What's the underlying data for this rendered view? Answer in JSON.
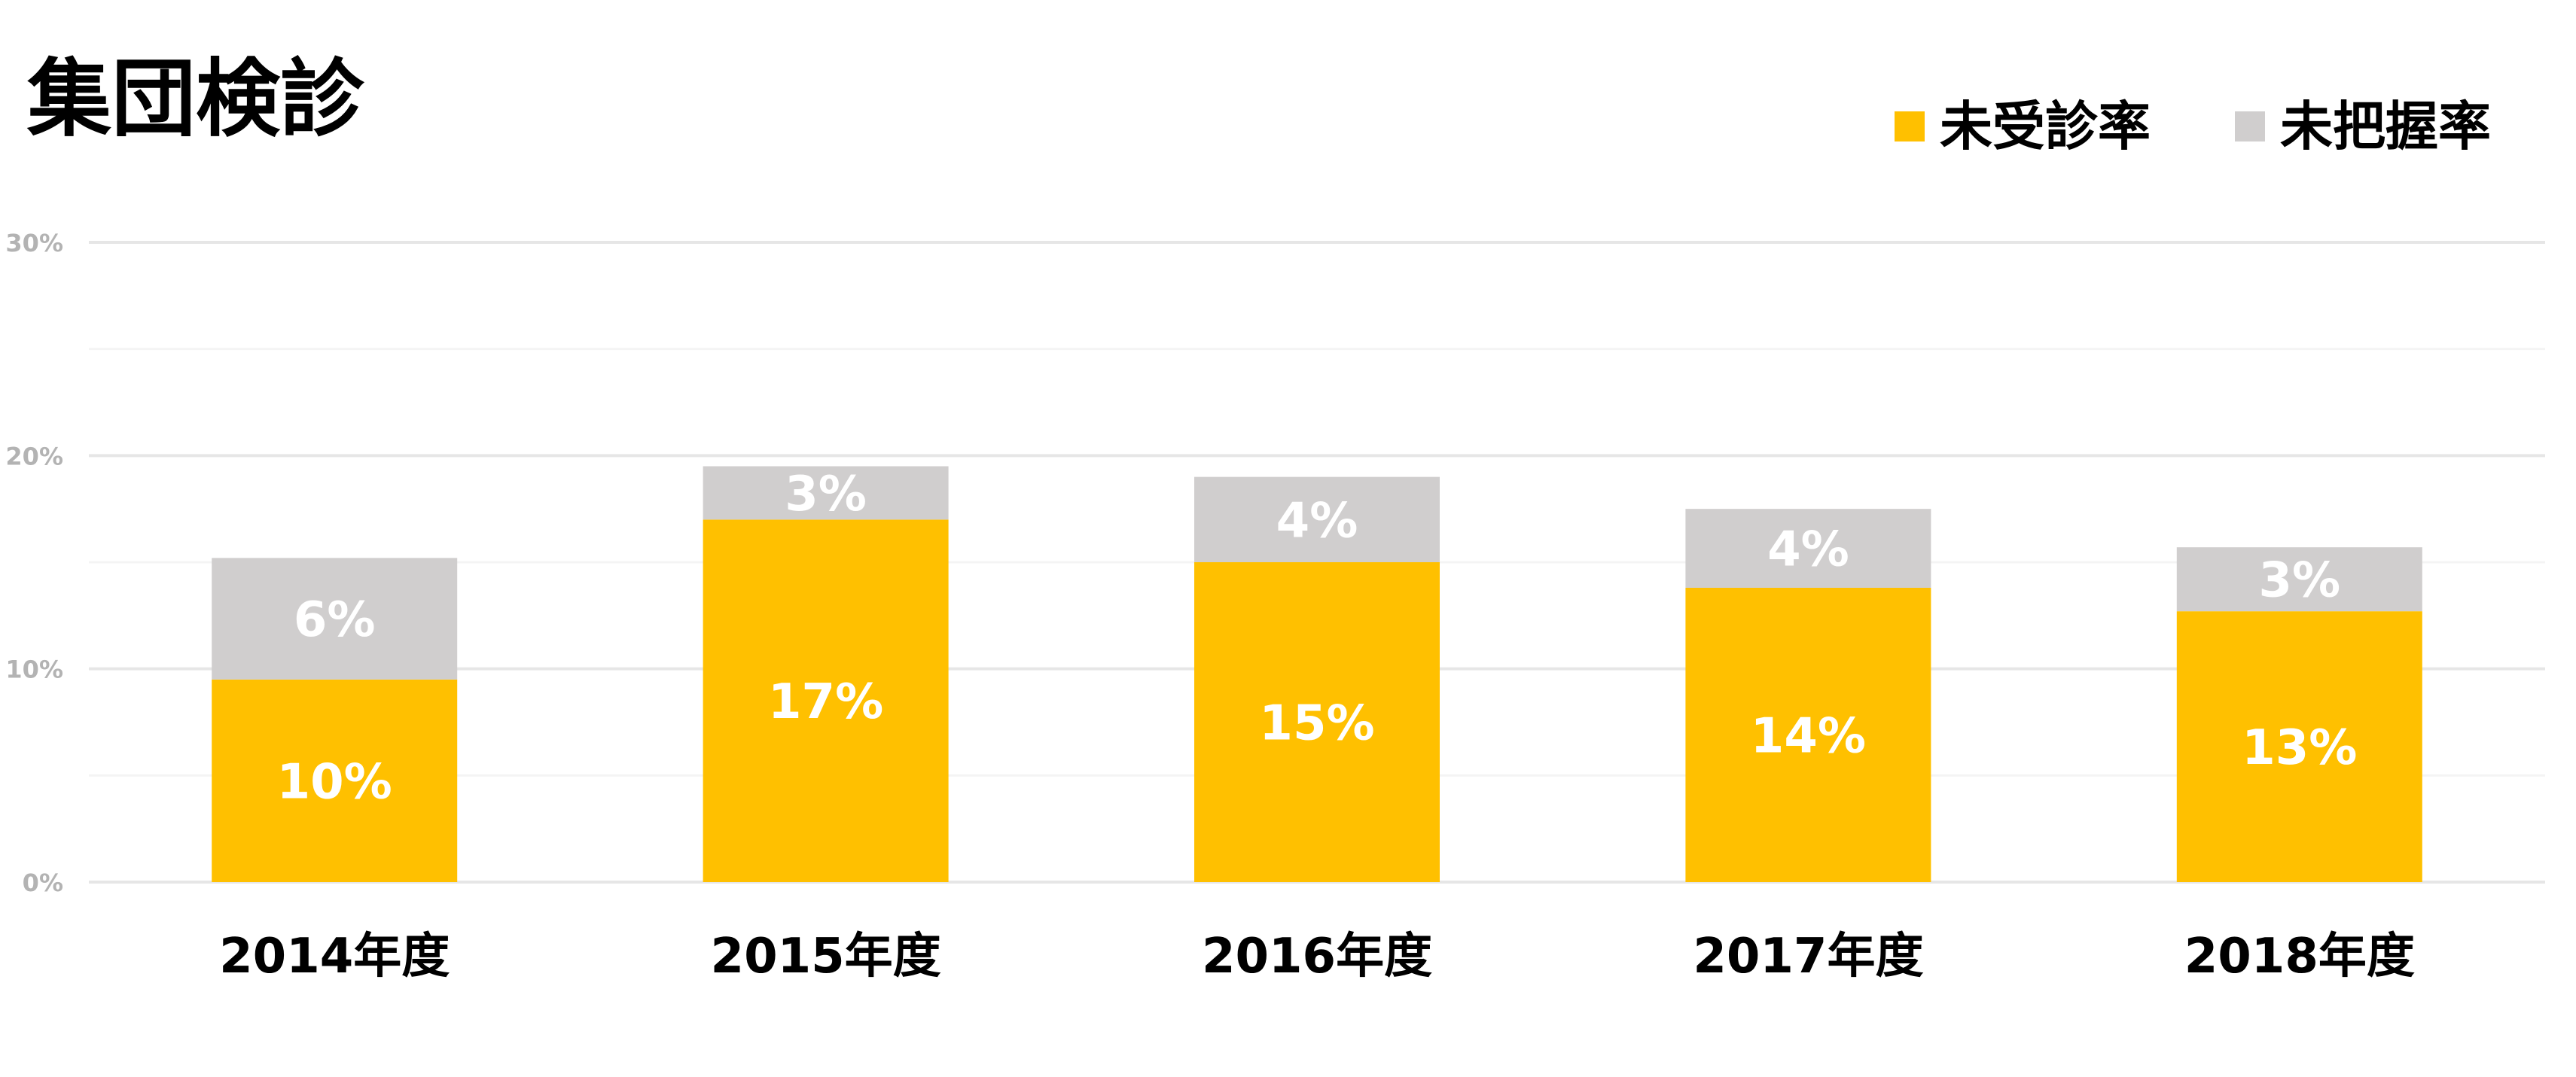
{
  "chart_data": {
    "type": "bar",
    "stacked": true,
    "title": "集団検診",
    "xlabel": "",
    "ylabel": "",
    "categories": [
      "2014年度",
      "2015年度",
      "2016年度",
      "2017年度",
      "2018年度"
    ],
    "series": [
      {
        "name": "未受診率",
        "color": "#ffc000",
        "values": [
          9.5,
          17.0,
          15.0,
          13.8,
          12.7
        ],
        "labels": [
          "10%",
          "17%",
          "15%",
          "14%",
          "13%"
        ]
      },
      {
        "name": "未把握率",
        "color": "#d0cece",
        "values": [
          5.7,
          2.5,
          4.0,
          3.7,
          3.0
        ],
        "labels": [
          "6%",
          "3%",
          "4%",
          "4%",
          "3%"
        ]
      }
    ],
    "ylim": [
      0,
      30
    ],
    "yticks": [
      0,
      10,
      20,
      30
    ],
    "ytick_labels": [
      "0%",
      "10%",
      "20%",
      "30%"
    ],
    "minor_grid_values": [
      5,
      15,
      25
    ],
    "grid": true,
    "legend": {
      "position": "top-right"
    },
    "colors": {
      "major_grid": "#e6e6e6",
      "minor_grid": "#f4f4f4",
      "tick_text": "#b3b3b3"
    }
  }
}
